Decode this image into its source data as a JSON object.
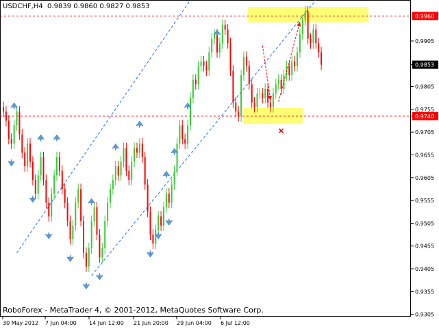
{
  "header": {
    "symbol": "USDCHF,H4",
    "ohlc": "0.9839 0.9860 0.9827 0.9853"
  },
  "footer": {
    "copyright": "RoboForex - MetaTrader 4, © 2001-2012, MetaQuotes Software Corp."
  },
  "colors": {
    "background": "#ffffff",
    "bull": "#32cd32",
    "bear": "#ff0000",
    "fractal": "#5b9bd5",
    "channel": "#1e6fff",
    "level": "#ff0000",
    "zone": "#ffff66",
    "arrow": "#ff0000"
  },
  "chart_data": {
    "type": "candlestick",
    "ylim": [
      0.93,
      0.9995
    ],
    "y_ticks": [
      "0.9960",
      "0.9905",
      "0.9853",
      "0.9805",
      "0.9755",
      "0.9740",
      "0.9705",
      "0.9655",
      "0.9605",
      "0.9555",
      "0.9505",
      "0.9455",
      "0.9405",
      "0.9355",
      "0.9305"
    ],
    "x_ticks": [
      "30 May 2012",
      "7 Jun 04:00",
      "14 Jun 12:00",
      "21 Jun 20:00",
      "29 Jun 04:00",
      "6 Jul 12:00"
    ],
    "levels": [
      {
        "value": 0.996,
        "label": "0.9960",
        "style": "red dashed",
        "label_bg": "#ff0000"
      },
      {
        "value": 0.974,
        "label": "0.9740",
        "style": "red dashed",
        "label_bg": "#ff0000"
      }
    ],
    "current_price": {
      "value": 0.9853,
      "label": "0.9853",
      "label_bg": "#000000"
    },
    "zones": [
      {
        "name": "resistance",
        "y_top": 0.998,
        "y_bottom": 0.9946
      },
      {
        "name": "support",
        "y_top": 0.9758,
        "y_bottom": 0.9723
      }
    ],
    "channel": {
      "upper": [
        [
          5,
          0.944
        ],
        [
          70,
          0.9995
        ]
      ],
      "lower": [
        [
          33,
          0.939
        ],
        [
          117,
          0.9995
        ]
      ]
    },
    "prices": [
      0.975,
      0.973,
      0.969,
      0.968,
      0.972,
      0.975,
      0.97,
      0.966,
      0.963,
      0.968,
      0.964,
      0.96,
      0.957,
      0.961,
      0.965,
      0.96,
      0.955,
      0.952,
      0.957,
      0.961,
      0.965,
      0.962,
      0.958,
      0.955,
      0.951,
      0.947,
      0.95,
      0.955,
      0.958,
      0.951,
      0.944,
      0.941,
      0.945,
      0.951,
      0.954,
      0.948,
      0.943,
      0.945,
      0.951,
      0.955,
      0.958,
      0.96,
      0.963,
      0.961,
      0.964,
      0.967,
      0.962,
      0.96,
      0.964,
      0.967,
      0.966,
      0.968,
      0.965,
      0.959,
      0.953,
      0.948,
      0.946,
      0.949,
      0.952,
      0.95,
      0.954,
      0.957,
      0.955,
      0.959,
      0.962,
      0.968,
      0.972,
      0.969,
      0.968,
      0.972,
      0.978,
      0.982,
      0.981,
      0.985,
      0.986,
      0.985,
      0.984,
      0.988,
      0.991,
      0.992,
      0.988,
      0.99,
      0.994,
      0.993,
      0.99,
      0.984,
      0.977,
      0.975,
      0.974,
      0.983,
      0.987,
      0.985,
      0.981,
      0.977,
      0.976,
      0.979,
      0.979,
      0.978,
      0.98,
      0.977,
      0.976,
      0.979,
      0.981,
      0.982,
      0.98,
      0.983,
      0.985,
      0.983,
      0.986,
      0.985,
      0.988,
      0.992,
      0.995,
      0.997,
      0.991,
      0.99,
      0.993,
      0.99,
      0.988,
      0.9853
    ],
    "fractals_up": [
      4,
      14,
      20,
      33,
      42,
      51,
      61,
      64,
      69,
      80
    ],
    "fractals_down": [
      3,
      11,
      17,
      25,
      31,
      36,
      55,
      58,
      62
    ],
    "arrows": [
      {
        "from": [
          97,
          0.9895
        ],
        "to": [
          100,
          0.9775
        ]
      },
      {
        "from": [
          103,
          0.9772
        ],
        "to": [
          111,
          0.9947
        ]
      }
    ],
    "target_mark": {
      "index": 104,
      "value": 0.9708
    }
  }
}
